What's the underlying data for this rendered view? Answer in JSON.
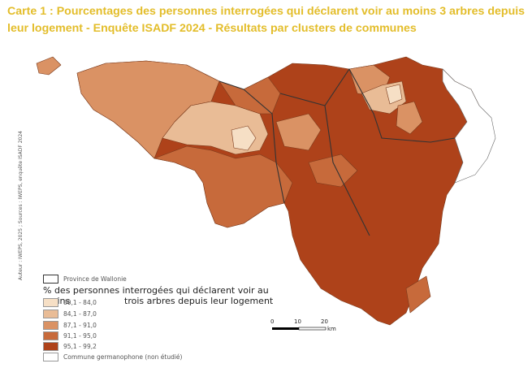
{
  "title": "Carte 1 : Pourcentages des personnes interrogées qui déclarent voir au moins 3 arbres depuis leur logement - Enquête ISADF 2024 - Résultats par clusters de communes",
  "credit": "Auteur : IWEPS, 2025 ; Sources : IWEPS, enquête ISADF 2024",
  "legend": {
    "province_label": "Province de Wallonie",
    "title_line1": "% des personnes interrogées qui déclarent voir au moins",
    "title_line2": "trois arbres depuis leur logement",
    "classes": [
      {
        "label": "80,1 - 84,0",
        "color": "#f6dfc5"
      },
      {
        "label": "84,1 - 87,0",
        "color": "#e9bc96"
      },
      {
        "label": "87,1 - 91,0",
        "color": "#da9264"
      },
      {
        "label": "91,1 - 95,0",
        "color": "#c76a3b"
      },
      {
        "label": "95,1 - 99,2",
        "color": "#ae421a"
      }
    ],
    "germanophone_label": "Commune germanophone (non étudié)"
  },
  "scale": {
    "ticks": [
      "0",
      "10",
      "20"
    ],
    "unit": "km"
  }
}
